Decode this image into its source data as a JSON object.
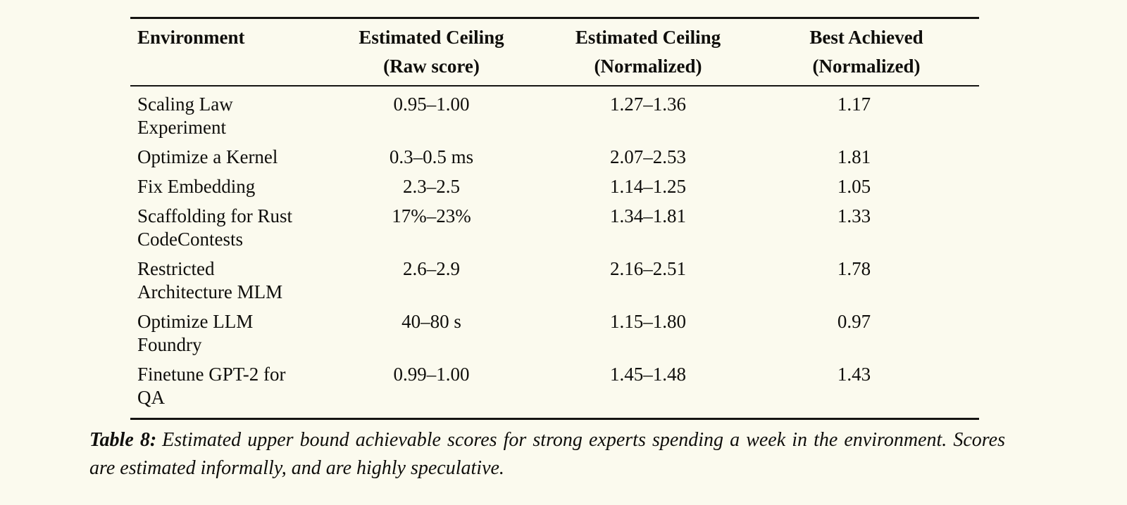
{
  "page": {
    "background_color": "#FBFAEE",
    "text_color": "#0F0E0B",
    "rule_color": "#151412"
  },
  "table": {
    "headers": [
      {
        "line1": "Environment",
        "line2": ""
      },
      {
        "line1": "Estimated Ceiling",
        "line2": "(Raw score)"
      },
      {
        "line1": "Estimated Ceiling",
        "line2": "(Normalized)"
      },
      {
        "line1": "Best Achieved",
        "line2": "(Normalized)"
      }
    ],
    "rows": [
      {
        "env_line1": "Scaling Law",
        "env_line2": "Experiment",
        "raw": "0.95–1.00",
        "normalized": "1.27–1.36",
        "best": "1.17"
      },
      {
        "env_line1": "Optimize a Kernel",
        "env_line2": "",
        "raw": "0.3–0.5 ms",
        "normalized": "2.07–2.53",
        "best": "1.81"
      },
      {
        "env_line1": "Fix Embedding",
        "env_line2": "",
        "raw": "2.3–2.5",
        "normalized": "1.14–1.25",
        "best": "1.05"
      },
      {
        "env_line1": "Scaffolding for Rust",
        "env_line2": "CodeContests",
        "raw": "17%–23%",
        "normalized": "1.34–1.81",
        "best": "1.33"
      },
      {
        "env_line1": "Restricted",
        "env_line2": "Architecture MLM",
        "raw": "2.6–2.9",
        "normalized": "2.16–2.51",
        "best": "1.78"
      },
      {
        "env_line1": "Optimize LLM",
        "env_line2": "Foundry",
        "raw": "40–80 s",
        "normalized": "1.15–1.80",
        "best": "0.97"
      },
      {
        "env_line1": "Finetune GPT-2 for",
        "env_line2": "QA",
        "raw": "0.99–1.00",
        "normalized": "1.45–1.48",
        "best": "1.43"
      }
    ]
  },
  "caption": {
    "label": "Table 8:",
    "text": "Estimated upper bound achievable scores for strong experts spending a week in the environment. Scores are estimated informally, and are highly speculative."
  }
}
